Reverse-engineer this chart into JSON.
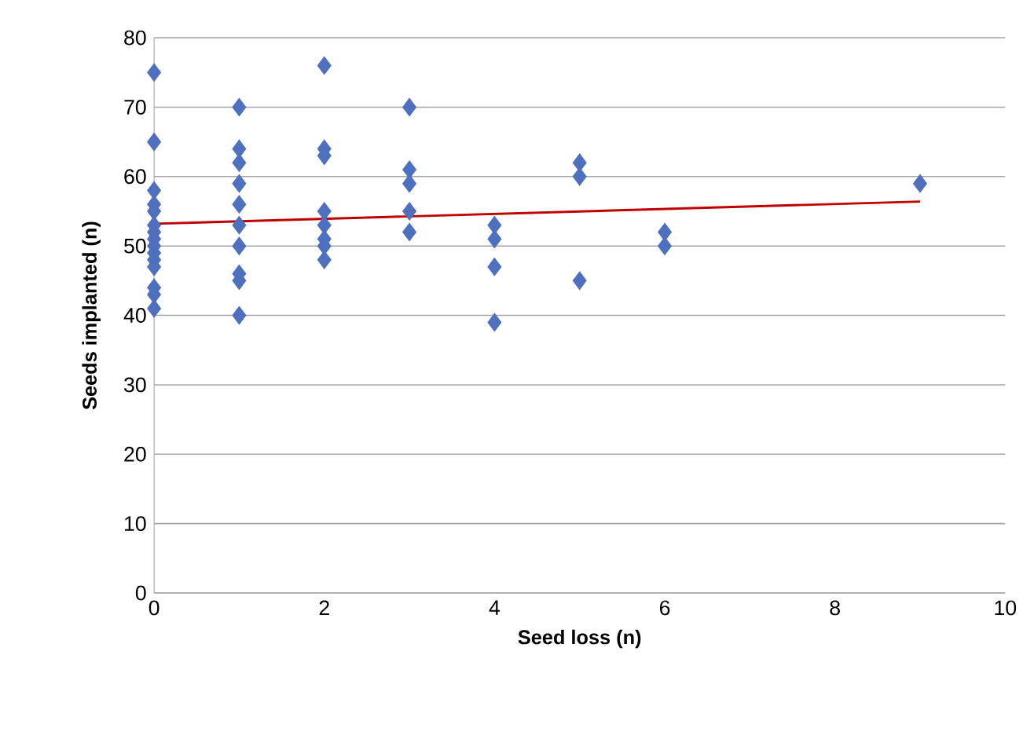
{
  "chart_data": {
    "type": "scatter",
    "xlabel": "Seed loss (n)",
    "ylabel": "Seeds implanted  (n)",
    "xlim": [
      0,
      10
    ],
    "xticks": [
      0,
      2,
      4,
      6,
      8,
      10
    ],
    "ylim": [
      0,
      80
    ],
    "yticks": [
      0,
      10,
      20,
      30,
      40,
      50,
      60,
      70,
      80
    ],
    "grid": "y",
    "series": [
      {
        "marker": "diamond",
        "color": "#4f6fbf",
        "x": [
          0,
          0,
          0,
          0,
          0,
          0,
          0,
          0,
          0,
          0,
          0,
          0,
          0,
          0,
          0,
          1,
          1,
          1,
          1,
          1,
          1,
          1,
          1,
          1,
          1,
          2,
          2,
          2,
          2,
          2,
          2,
          2,
          2,
          3,
          3,
          3,
          3,
          3,
          4,
          4,
          4,
          4,
          5,
          5,
          5,
          6,
          6,
          9
        ],
        "values": [
          75,
          65,
          58,
          56,
          55,
          53,
          52,
          51,
          50,
          49,
          48,
          47,
          44,
          43,
          41,
          70,
          64,
          62,
          59,
          56,
          53,
          50,
          46,
          45,
          40,
          76,
          64,
          63,
          55,
          53,
          51,
          50,
          48,
          70,
          61,
          59,
          55,
          52,
          53,
          51,
          47,
          39,
          62,
          60,
          45,
          52,
          50,
          59
        ]
      },
      {
        "type": "line",
        "color": "#c00000",
        "x": [
          0,
          9
        ],
        "values": [
          53.2,
          56.4
        ]
      }
    ]
  }
}
